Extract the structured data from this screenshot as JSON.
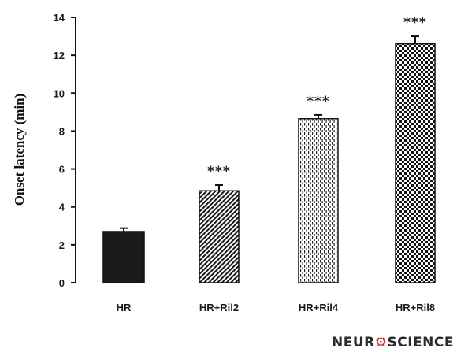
{
  "chart_data": {
    "type": "bar",
    "categories": [
      "HR",
      "HR+Ril2",
      "HR+Ril4",
      "HR+Ril8"
    ],
    "values": [
      2.7,
      4.85,
      8.65,
      12.6
    ],
    "errors": [
      0.18,
      0.3,
      0.2,
      0.4
    ],
    "significance": [
      "",
      "***",
      "***",
      "***"
    ],
    "fills": [
      "solid",
      "diagonal-hatch",
      "vertical-dash",
      "checker"
    ],
    "ylabel": "Onset latency (min)",
    "xlabel": "",
    "ylim": [
      0,
      14
    ],
    "yticks": [
      0,
      2,
      4,
      6,
      8,
      10,
      12,
      14
    ],
    "grid": false,
    "legend": "none"
  },
  "watermark": {
    "prefix": "NEUR",
    "suffix": "SCIENCE"
  }
}
